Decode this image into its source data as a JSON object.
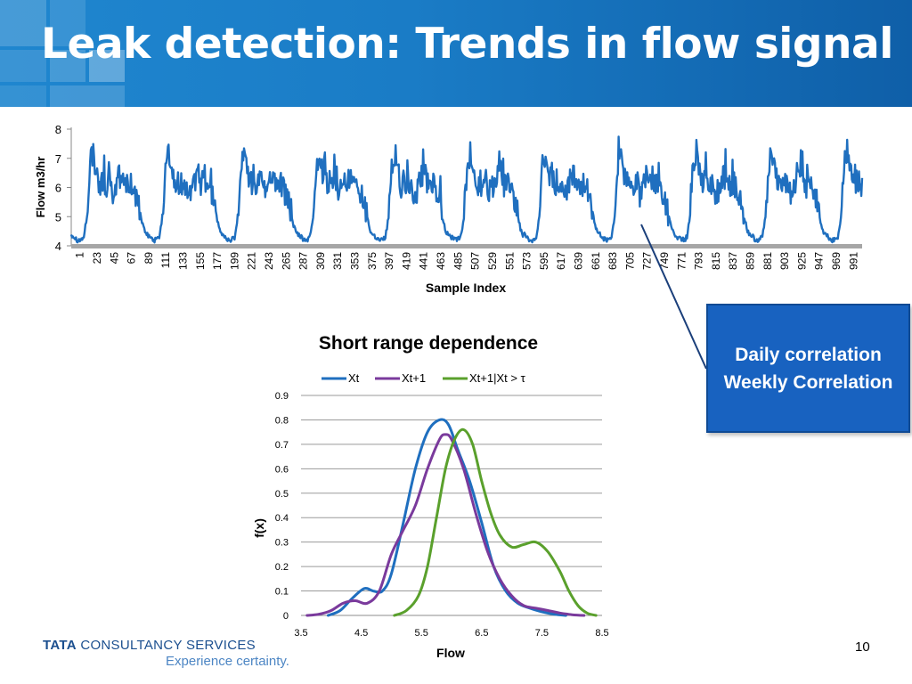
{
  "slide": {
    "title": "Leak detection: Trends in flow signal",
    "page_number": "10",
    "colors": {
      "header_blue": "#1a7cc6",
      "callout_blue": "#1862c0",
      "series_xt": "#1f6fbf",
      "series_xt1": "#7a3a9c",
      "series_cond": "#5aa02c"
    }
  },
  "callout": {
    "line1": "Daily correlation",
    "line2": "Weekly Correlation"
  },
  "footer": {
    "company": "TATA CONSULTANCY SERVICES",
    "company_strong": "TATA",
    "company_rest": "CONSULTANCY SERVICES",
    "tagline": "Experience certainty."
  },
  "chart_data": [
    {
      "type": "line",
      "title": "",
      "xlabel": "Sample Index",
      "ylabel": "Flow m3/hr",
      "ylim": [
        4,
        8
      ],
      "yticks": [
        4,
        5,
        6,
        7,
        8
      ],
      "xtick_labels": [
        "1",
        "23",
        "45",
        "67",
        "89",
        "111",
        "133",
        "155",
        "177",
        "199",
        "221",
        "243",
        "265",
        "287",
        "309",
        "331",
        "353",
        "375",
        "397",
        "419",
        "441",
        "463",
        "485",
        "507",
        "529",
        "551",
        "573",
        "595",
        "617",
        "639",
        "661",
        "683",
        "705",
        "727",
        "749",
        "771",
        "793",
        "815",
        "837",
        "859",
        "881",
        "903",
        "925",
        "947",
        "969",
        "991"
      ],
      "xlim": [
        1,
        1008
      ],
      "grid": false,
      "legend": "none",
      "cycle_period": 96,
      "daily_profile": {
        "x_in_cycle": [
          0,
          4,
          8,
          12,
          16,
          20,
          24,
          28,
          32,
          36,
          40,
          44,
          48,
          52,
          56,
          60,
          64,
          68,
          72,
          76,
          80,
          84,
          88,
          92,
          95
        ],
        "y": [
          4.4,
          4.3,
          4.2,
          4.2,
          4.3,
          5.0,
          6.8,
          7.2,
          6.5,
          6.1,
          6.2,
          6.1,
          6.2,
          5.7,
          5.9,
          6.4,
          6.3,
          6.2,
          6.0,
          6.1,
          5.8,
          5.6,
          5.1,
          4.6,
          4.4
        ]
      },
      "series": [
        {
          "name": "",
          "color": "#1f6fbf"
        }
      ]
    },
    {
      "type": "line",
      "title": "Short range dependence",
      "xlabel": "Flow",
      "ylabel": "f(x)",
      "xlim": [
        3.5,
        8.5
      ],
      "ylim": [
        0,
        0.9
      ],
      "xticks": [
        3.5,
        4.5,
        5.5,
        6.5,
        7.5,
        8.5
      ],
      "yticks": [
        0,
        0.1,
        0.2,
        0.3,
        0.4,
        0.5,
        0.6,
        0.7,
        0.8,
        0.9
      ],
      "grid": true,
      "legend": "top",
      "series": [
        {
          "name": "Xt",
          "color": "#1f6fbf",
          "x": [
            3.95,
            4.15,
            4.35,
            4.55,
            4.7,
            4.85,
            5.0,
            5.2,
            5.4,
            5.6,
            5.8,
            5.95,
            6.1,
            6.3,
            6.5,
            6.7,
            6.9,
            7.1,
            7.3,
            7.5,
            7.7,
            7.9
          ],
          "y": [
            0.0,
            0.02,
            0.07,
            0.11,
            0.1,
            0.1,
            0.17,
            0.38,
            0.6,
            0.75,
            0.8,
            0.78,
            0.68,
            0.55,
            0.38,
            0.2,
            0.1,
            0.05,
            0.03,
            0.015,
            0.005,
            0.0
          ]
        },
        {
          "name": "Xt+1",
          "color": "#7a3a9c",
          "x": [
            3.6,
            3.8,
            4.0,
            4.2,
            4.4,
            4.6,
            4.8,
            5.0,
            5.2,
            5.4,
            5.6,
            5.8,
            5.9,
            6.0,
            6.2,
            6.4,
            6.6,
            6.8,
            7.0,
            7.2,
            7.4,
            7.6,
            7.8,
            8.0,
            8.2
          ],
          "y": [
            0.0,
            0.005,
            0.02,
            0.05,
            0.06,
            0.05,
            0.1,
            0.25,
            0.35,
            0.45,
            0.6,
            0.72,
            0.74,
            0.72,
            0.6,
            0.42,
            0.26,
            0.15,
            0.08,
            0.04,
            0.03,
            0.02,
            0.01,
            0.003,
            0.0
          ]
        },
        {
          "name": "Xt+1|Xt  > τ",
          "color": "#5aa02c",
          "x": [
            5.05,
            5.25,
            5.45,
            5.6,
            5.75,
            5.9,
            6.05,
            6.2,
            6.35,
            6.5,
            6.65,
            6.8,
            7.0,
            7.2,
            7.4,
            7.6,
            7.8,
            7.95,
            8.1,
            8.25,
            8.4
          ],
          "y": [
            0.0,
            0.02,
            0.08,
            0.2,
            0.4,
            0.6,
            0.72,
            0.76,
            0.7,
            0.55,
            0.42,
            0.33,
            0.28,
            0.29,
            0.3,
            0.26,
            0.18,
            0.1,
            0.04,
            0.01,
            0.0
          ]
        }
      ]
    }
  ]
}
